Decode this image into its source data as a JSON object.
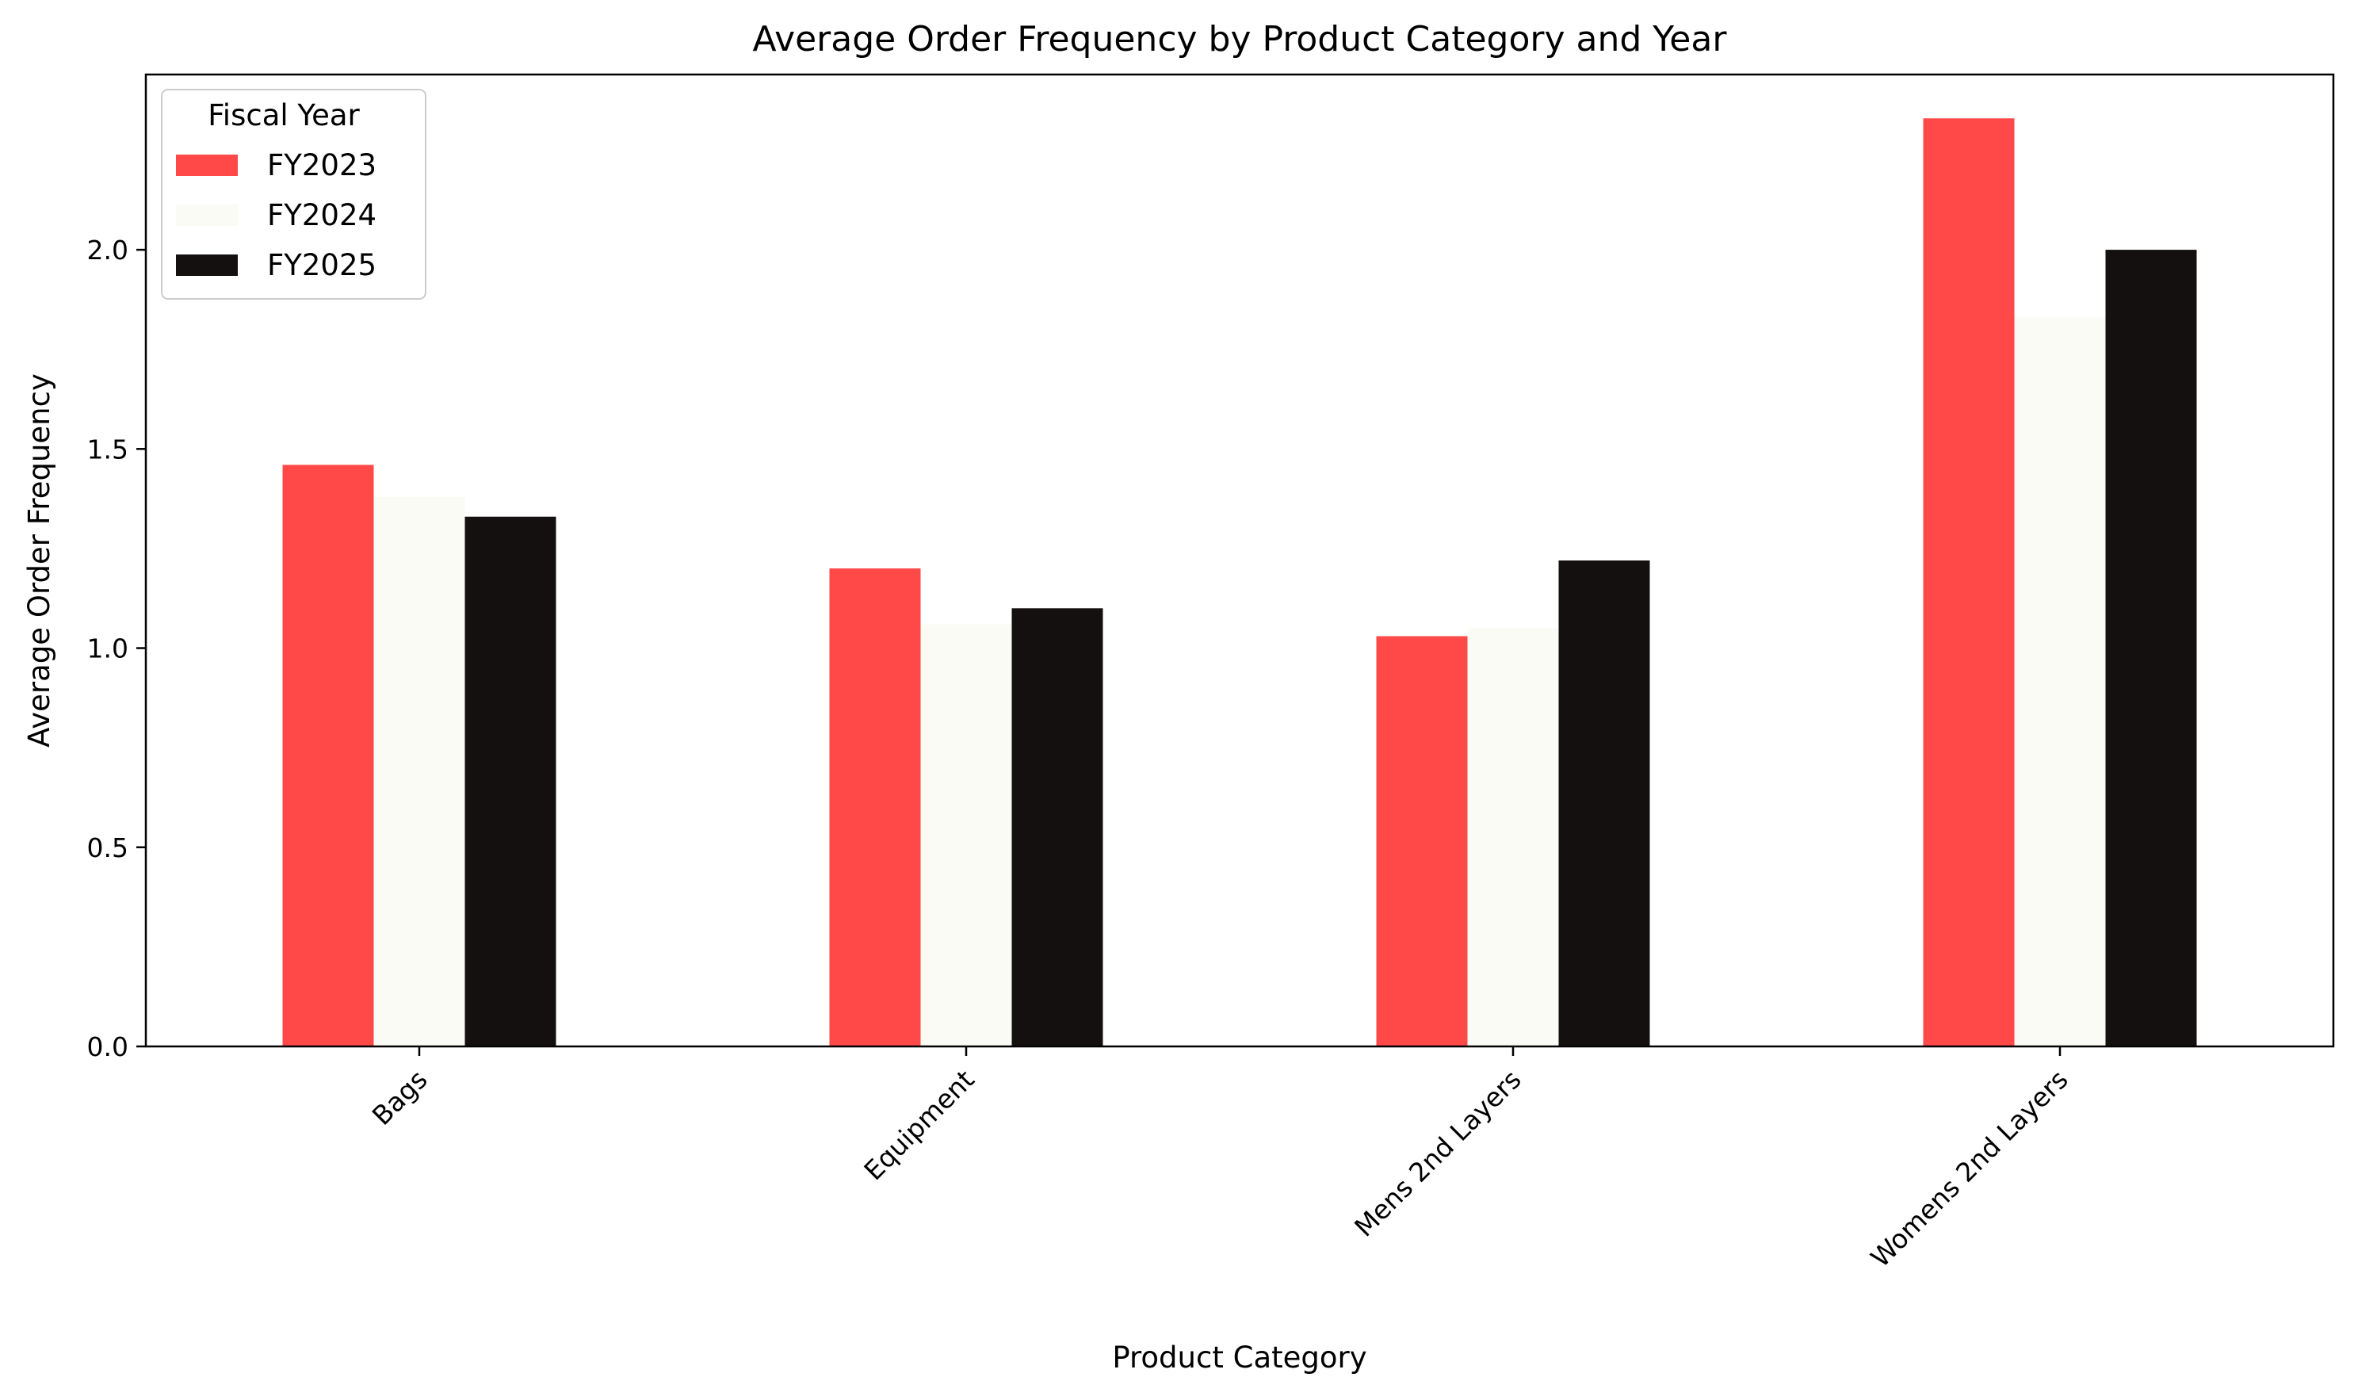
{
  "chart_data": {
    "type": "bar",
    "title": "Average Order Frequency by Product Category and Year",
    "xlabel": "Product Category",
    "ylabel": "Average Order Frequency",
    "categories": [
      "Bags",
      "Equipment",
      "Mens 2nd Layers",
      "Womens 2nd Layers"
    ],
    "series": [
      {
        "name": "FY2023",
        "color": "#ff4848",
        "values": [
          1.46,
          1.2,
          1.03,
          2.33
        ]
      },
      {
        "name": "FY2024",
        "color": "#fbfbf6",
        "values": [
          1.38,
          1.06,
          1.05,
          1.83
        ]
      },
      {
        "name": "FY2025",
        "color": "#141010",
        "values": [
          1.33,
          1.1,
          1.22,
          2.0
        ]
      }
    ],
    "ylim": [
      0,
      2.44
    ],
    "yticks": [
      0.0,
      0.5,
      1.0,
      1.5,
      2.0
    ],
    "ytick_labels": [
      "0.0",
      "0.5",
      "1.0",
      "1.5",
      "2.0"
    ],
    "legend": {
      "title": "Fiscal Year",
      "placement": "top-left"
    },
    "grid": false
  }
}
